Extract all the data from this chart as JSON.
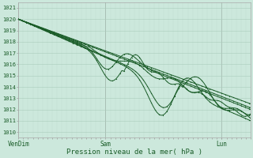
{
  "title": "Pression niveau de la mer( hPa )",
  "x_ticks_labels": [
    "VenDim",
    "Sam",
    "Lun"
  ],
  "x_ticks_pos": [
    0.0,
    0.375,
    0.875
  ],
  "ylim": [
    1009.5,
    1021.5
  ],
  "yticks": [
    1010,
    1011,
    1012,
    1013,
    1014,
    1015,
    1016,
    1017,
    1018,
    1019,
    1020,
    1021
  ],
  "xlim": [
    0.0,
    1.0
  ],
  "bg_color": "#cce8dc",
  "grid_color_major": "#aaccbc",
  "grid_color_minor": "#bedad0",
  "line_color": "#1a5c28",
  "line_width": 0.7,
  "marker_size": 1.8,
  "num_lines": 7,
  "figsize": [
    3.2,
    2.0
  ],
  "dpi": 100
}
